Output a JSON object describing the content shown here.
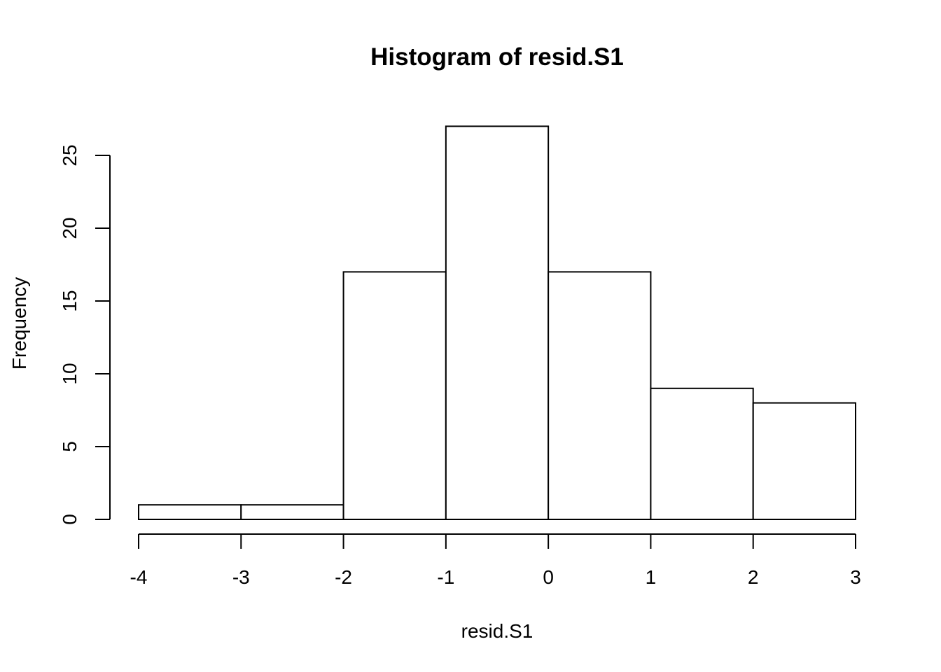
{
  "chart_data": {
    "type": "bar",
    "title": "Histogram of resid.S1",
    "xlabel": "resid.S1",
    "ylabel": "Frequency",
    "breaks": [
      -4,
      -3,
      -2,
      -1,
      0,
      1,
      2,
      3
    ],
    "counts": [
      1,
      1,
      17,
      27,
      17,
      9,
      8
    ],
    "categories": [
      "-4 to -3",
      "-3 to -2",
      "-2 to -1",
      "-1 to 0",
      "0 to 1",
      "1 to 2",
      "2 to 3"
    ],
    "values": [
      1,
      1,
      17,
      27,
      17,
      9,
      8
    ],
    "xlim": [
      -4,
      3
    ],
    "ylim": [
      0,
      27
    ],
    "x_ticks": [
      -4,
      -3,
      -2,
      -1,
      0,
      1,
      2,
      3
    ],
    "x_tick_labels": [
      "-4",
      "-3",
      "-2",
      "-1",
      "0",
      "1",
      "2",
      "3"
    ],
    "y_ticks": [
      0,
      5,
      10,
      15,
      20,
      25
    ],
    "y_tick_labels": [
      "0",
      "5",
      "10",
      "15",
      "20",
      "25"
    ],
    "grid": false,
    "legend": "none",
    "bar_fill": "#ffffff",
    "bar_stroke": "#000000"
  }
}
